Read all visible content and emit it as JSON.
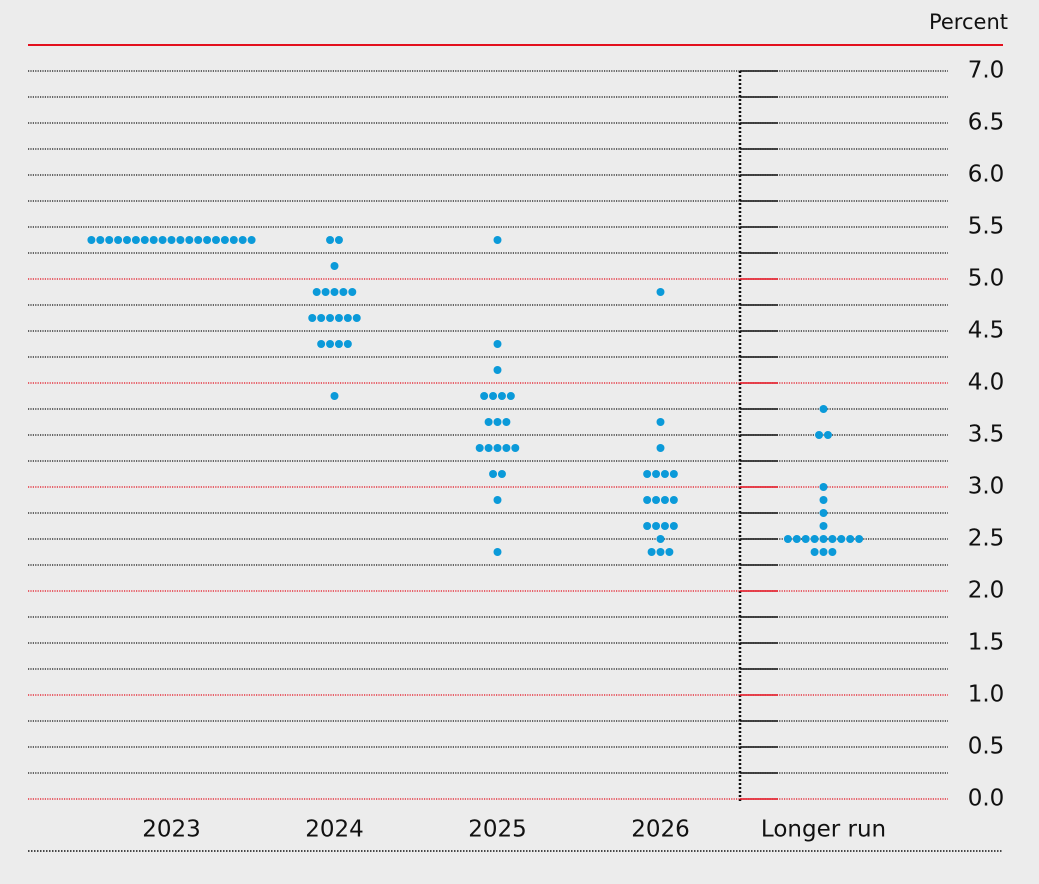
{
  "chart_data": {
    "type": "dot",
    "unit_label": "Percent",
    "categories": [
      "2023",
      "2024",
      "2025",
      "2026",
      "Longer run"
    ],
    "dots": [
      [
        {
          "value": 5.375,
          "count": 19
        }
      ],
      [
        {
          "value": 5.375,
          "count": 2
        },
        {
          "value": 5.125,
          "count": 1
        },
        {
          "value": 4.875,
          "count": 5
        },
        {
          "value": 4.625,
          "count": 6
        },
        {
          "value": 4.375,
          "count": 4
        },
        {
          "value": 3.875,
          "count": 1
        }
      ],
      [
        {
          "value": 5.375,
          "count": 1
        },
        {
          "value": 4.375,
          "count": 1
        },
        {
          "value": 4.125,
          "count": 1
        },
        {
          "value": 3.875,
          "count": 4
        },
        {
          "value": 3.625,
          "count": 3
        },
        {
          "value": 3.375,
          "count": 5
        },
        {
          "value": 3.125,
          "count": 2
        },
        {
          "value": 2.875,
          "count": 1
        },
        {
          "value": 2.375,
          "count": 1
        }
      ],
      [
        {
          "value": 4.875,
          "count": 1
        },
        {
          "value": 3.625,
          "count": 1
        },
        {
          "value": 3.375,
          "count": 1
        },
        {
          "value": 3.125,
          "count": 4
        },
        {
          "value": 2.875,
          "count": 4
        },
        {
          "value": 2.625,
          "count": 4
        },
        {
          "value": 2.5,
          "count": 1
        },
        {
          "value": 2.375,
          "count": 3
        }
      ],
      [
        {
          "value": 3.75,
          "count": 1
        },
        {
          "value": 3.5,
          "count": 2
        },
        {
          "value": 3.0,
          "count": 1
        },
        {
          "value": 2.875,
          "count": 1
        },
        {
          "value": 2.75,
          "count": 1
        },
        {
          "value": 2.625,
          "count": 1
        },
        {
          "value": 2.5,
          "count": 9
        },
        {
          "value": 2.375,
          "count": 3
        }
      ]
    ],
    "color": "#0b9ad9",
    "ylim": [
      0,
      7
    ],
    "yticks": [
      {
        "value": 0,
        "label": "0.0"
      },
      {
        "value": 0.5,
        "label": "0.5"
      },
      {
        "value": 1,
        "label": "1.0"
      },
      {
        "value": 1.5,
        "label": "1.5"
      },
      {
        "value": 2,
        "label": "2.0"
      },
      {
        "value": 2.5,
        "label": "2.5"
      },
      {
        "value": 3,
        "label": "3.0"
      },
      {
        "value": 3.5,
        "label": "3.5"
      },
      {
        "value": 4,
        "label": "4.0"
      },
      {
        "value": 4.5,
        "label": "4.5"
      },
      {
        "value": 5,
        "label": "5.0"
      },
      {
        "value": 5.5,
        "label": "5.5"
      },
      {
        "value": 6,
        "label": "6.0"
      },
      {
        "value": 6.5,
        "label": "6.5"
      },
      {
        "value": 7,
        "label": "7.0"
      }
    ],
    "grid": true
  }
}
